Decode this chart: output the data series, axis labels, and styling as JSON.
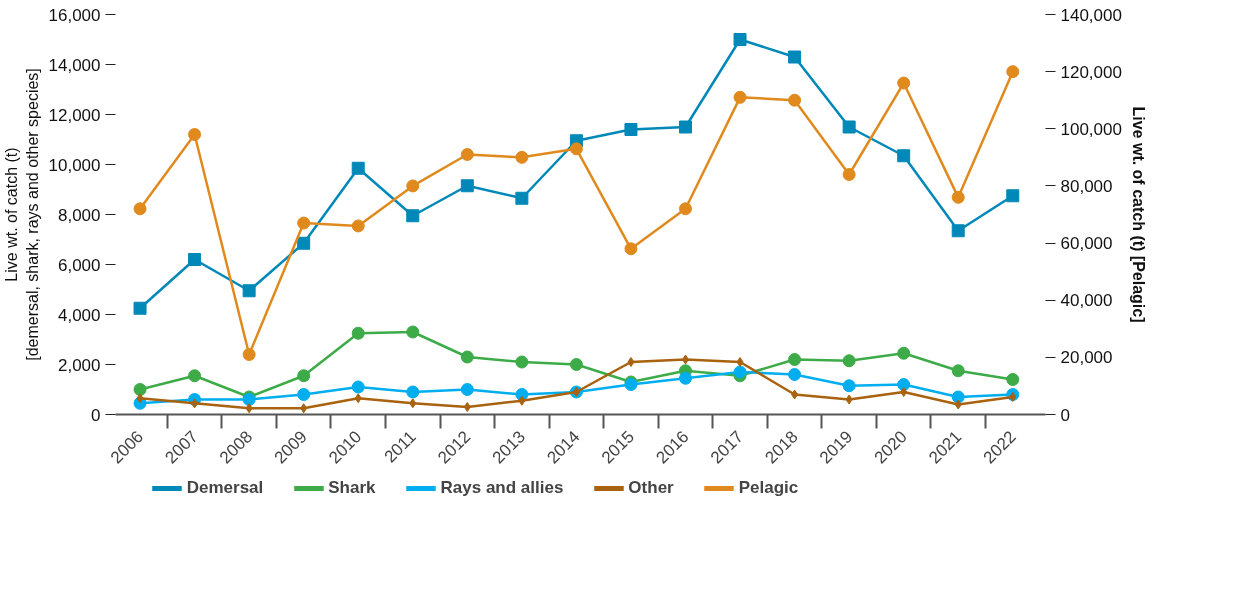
{
  "chart_data": {
    "type": "line",
    "categories": [
      "2006",
      "2007",
      "2008",
      "2009",
      "2010",
      "2011",
      "2012",
      "2013",
      "2014",
      "2015",
      "2016",
      "2017",
      "2018",
      "2019",
      "2020",
      "2021",
      "2022"
    ],
    "ylabel": "Live wt. of catch (t)\n[demersal, shark, rays and other species]",
    "y2label": "Live wt. of catch (t) [Pelagic]",
    "ylim": [
      0,
      16000
    ],
    "yticks": [
      {
        "value": 0,
        "label": "0"
      },
      {
        "value": 2000,
        "label": "2,000"
      },
      {
        "value": 4000,
        "label": "4,000"
      },
      {
        "value": 6000,
        "label": "6,000"
      },
      {
        "value": 8000,
        "label": "8,000"
      },
      {
        "value": 10000,
        "label": "10,000"
      },
      {
        "value": 12000,
        "label": "12,000"
      },
      {
        "value": 14000,
        "label": "14,000"
      },
      {
        "value": 16000,
        "label": "16,000"
      }
    ],
    "y2lim": [
      0,
      140000
    ],
    "y2ticks": [
      {
        "value": 0,
        "label": "0"
      },
      {
        "value": 20000,
        "label": "20,000"
      },
      {
        "value": 40000,
        "label": "40,000"
      },
      {
        "value": 60000,
        "label": "60,000"
      },
      {
        "value": 80000,
        "label": "80,000"
      },
      {
        "value": 100000,
        "label": "100,000"
      },
      {
        "value": 120000,
        "label": "120,000"
      },
      {
        "value": 140000,
        "label": "140,000"
      }
    ],
    "grid": false,
    "legend": "bottom",
    "series": [
      {
        "name": "Demersal",
        "color": "#0088b8",
        "marker": "square",
        "values": [
          4250,
          6200,
          4950,
          6850,
          9850,
          7950,
          9150,
          8650,
          10950,
          11400,
          11500,
          15000,
          14300,
          11500,
          10350,
          7350,
          8750
        ]
      },
      {
        "name": "Shark",
        "color": "#3cab48",
        "marker": "circle",
        "values": [
          1000,
          1550,
          700,
          1550,
          3250,
          3300,
          2300,
          2100,
          2000,
          1300,
          1750,
          1550,
          2200,
          2150,
          2450,
          1750,
          1400
        ]
      },
      {
        "name": "Rays and allies",
        "color": "#00aeef",
        "marker": "circle",
        "values": [
          450,
          600,
          600,
          800,
          1100,
          900,
          1000,
          800,
          900,
          1200,
          1450,
          1700,
          1600,
          1150,
          1200,
          700,
          800
        ]
      },
      {
        "name": "Other",
        "color": "#a9620f",
        "marker": "diamond",
        "values": [
          650,
          450,
          250,
          250,
          650,
          450,
          300,
          550,
          900,
          2100,
          2200,
          2100,
          800,
          600,
          900,
          400,
          700
        ]
      },
      {
        "name": "Pelagic",
        "color": "#e08a1e",
        "marker": "circle",
        "axis": "y2",
        "values": [
          72000,
          98000,
          21000,
          67000,
          66000,
          80000,
          91000,
          90000,
          93000,
          58000,
          72000,
          111000,
          110000,
          84000,
          116000,
          76000,
          120000
        ]
      }
    ]
  }
}
